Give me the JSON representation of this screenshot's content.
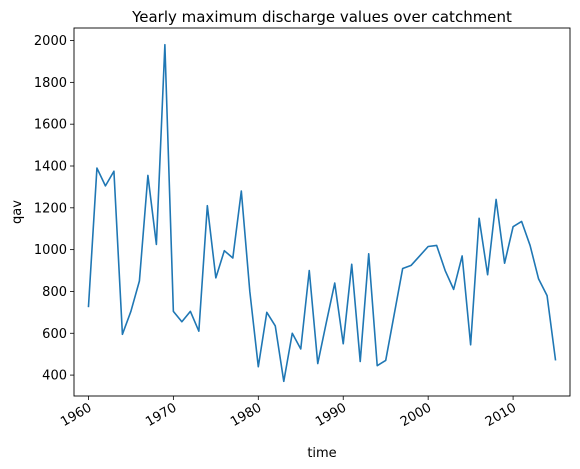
{
  "chart_data": {
    "type": "line",
    "title": "Yearly maximum discharge values over catchment",
    "xlabel": "time",
    "ylabel": "qav",
    "xlim": [
      1958.3,
      2016.7
    ],
    "ylim": [
      300,
      2060
    ],
    "xticks": [
      1960,
      1970,
      1980,
      1990,
      2000,
      2010
    ],
    "yticks": [
      400,
      600,
      800,
      1000,
      1200,
      1400,
      1600,
      1800,
      2000
    ],
    "grid": false,
    "line_color": "#1f77b4",
    "series": [
      {
        "x": [
          1960,
          1961,
          1962,
          1963,
          1964,
          1965,
          1966,
          1967,
          1968,
          1969,
          1970,
          1971,
          1972,
          1973,
          1974,
          1975,
          1976,
          1977,
          1978,
          1979,
          1980,
          1981,
          1982,
          1983,
          1984,
          1985,
          1986,
          1987,
          1988,
          1989,
          1990,
          1991,
          1992,
          1993,
          1994,
          1995,
          1996,
          1997,
          1998,
          1999,
          2000,
          2001,
          2002,
          2003,
          2004,
          2005,
          2006,
          2007,
          2008,
          2009,
          2010,
          2011,
          2012,
          2013,
          2014,
          2015
        ],
        "values": [
          725,
          1390,
          1305,
          1375,
          595,
          705,
          850,
          1355,
          1025,
          1980,
          705,
          655,
          705,
          610,
          1210,
          865,
          995,
          960,
          1280,
          800,
          440,
          700,
          635,
          370,
          600,
          525,
          900,
          455,
          650,
          840,
          550,
          930,
          465,
          980,
          445,
          470,
          690,
          910,
          925,
          970,
          1015,
          1020,
          900,
          810,
          970,
          545,
          1150,
          880,
          1240,
          935,
          1110,
          1135,
          1020,
          860,
          780,
          470
        ]
      }
    ]
  }
}
